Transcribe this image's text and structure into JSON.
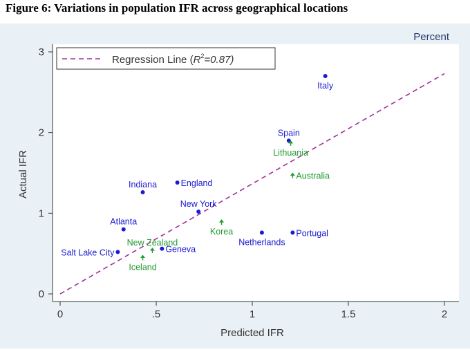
{
  "figure_title": "Figure 6: Variations in population IFR across geographical locations",
  "colors": {
    "regression": "#a0309a",
    "blue_marker": "#1a1ad2",
    "green_marker": "#1f9a2e",
    "axis": "#333333",
    "panel_bg": "#eaf1f6"
  },
  "chart_data": {
    "type": "scatter",
    "title": "",
    "unit_label": "Percent",
    "xlabel": "Predicted IFR",
    "ylabel": "Actual IFR",
    "xlim": [
      0,
      2
    ],
    "ylim": [
      0,
      3
    ],
    "x_ticks": [
      {
        "value": 0,
        "label": "0"
      },
      {
        "value": 0.5,
        "label": ".5"
      },
      {
        "value": 1,
        "label": "1"
      },
      {
        "value": 1.5,
        "label": "1.5"
      },
      {
        "value": 2,
        "label": "2"
      }
    ],
    "y_ticks": [
      {
        "value": 0,
        "label": "0"
      },
      {
        "value": 1,
        "label": "1"
      },
      {
        "value": 2,
        "label": "2"
      },
      {
        "value": 3,
        "label": "3"
      }
    ],
    "legend": {
      "label_prefix": "Regression Line (",
      "label_var": "R",
      "label_sup": "2",
      "label_suffix": "=0.87)",
      "placement": "top-left"
    },
    "regression_line": {
      "x": [
        0,
        2
      ],
      "y": [
        0,
        2.73
      ]
    },
    "series": [
      {
        "name": "Blue (circle)",
        "marker": "circle",
        "color": "#1a1ad2",
        "points": [
          {
            "label": "Italy",
            "x": 1.38,
            "y": 2.7,
            "anchor": "below"
          },
          {
            "label": "Spain",
            "x": 1.19,
            "y": 1.9,
            "anchor": "above"
          },
          {
            "label": "England",
            "x": 0.61,
            "y": 1.38,
            "anchor": "right"
          },
          {
            "label": "Indiana",
            "x": 0.43,
            "y": 1.26,
            "anchor": "above"
          },
          {
            "label": "New York",
            "x": 0.72,
            "y": 1.02,
            "anchor": "above"
          },
          {
            "label": "Atlanta",
            "x": 0.33,
            "y": 0.8,
            "anchor": "above"
          },
          {
            "label": "Netherlands",
            "x": 1.05,
            "y": 0.76,
            "anchor": "below"
          },
          {
            "label": "Portugal",
            "x": 1.21,
            "y": 0.76,
            "anchor": "right"
          },
          {
            "label": "Salt Lake City",
            "x": 0.3,
            "y": 0.52,
            "anchor": "left"
          },
          {
            "label": "Geneva",
            "x": 0.53,
            "y": 0.56,
            "anchor": "right"
          }
        ]
      },
      {
        "name": "Green (arrow)",
        "marker": "arrow",
        "color": "#1f9a2e",
        "points": [
          {
            "label": "Lithuania",
            "x": 1.2,
            "y": 1.87,
            "anchor": "below"
          },
          {
            "label": "Australia",
            "x": 1.21,
            "y": 1.47,
            "anchor": "right"
          },
          {
            "label": "Korea",
            "x": 0.84,
            "y": 0.89,
            "anchor": "below"
          },
          {
            "label": "New Zealand",
            "x": 0.48,
            "y": 0.54,
            "anchor": "above"
          },
          {
            "label": "Iceland",
            "x": 0.43,
            "y": 0.45,
            "anchor": "below"
          }
        ]
      }
    ]
  }
}
